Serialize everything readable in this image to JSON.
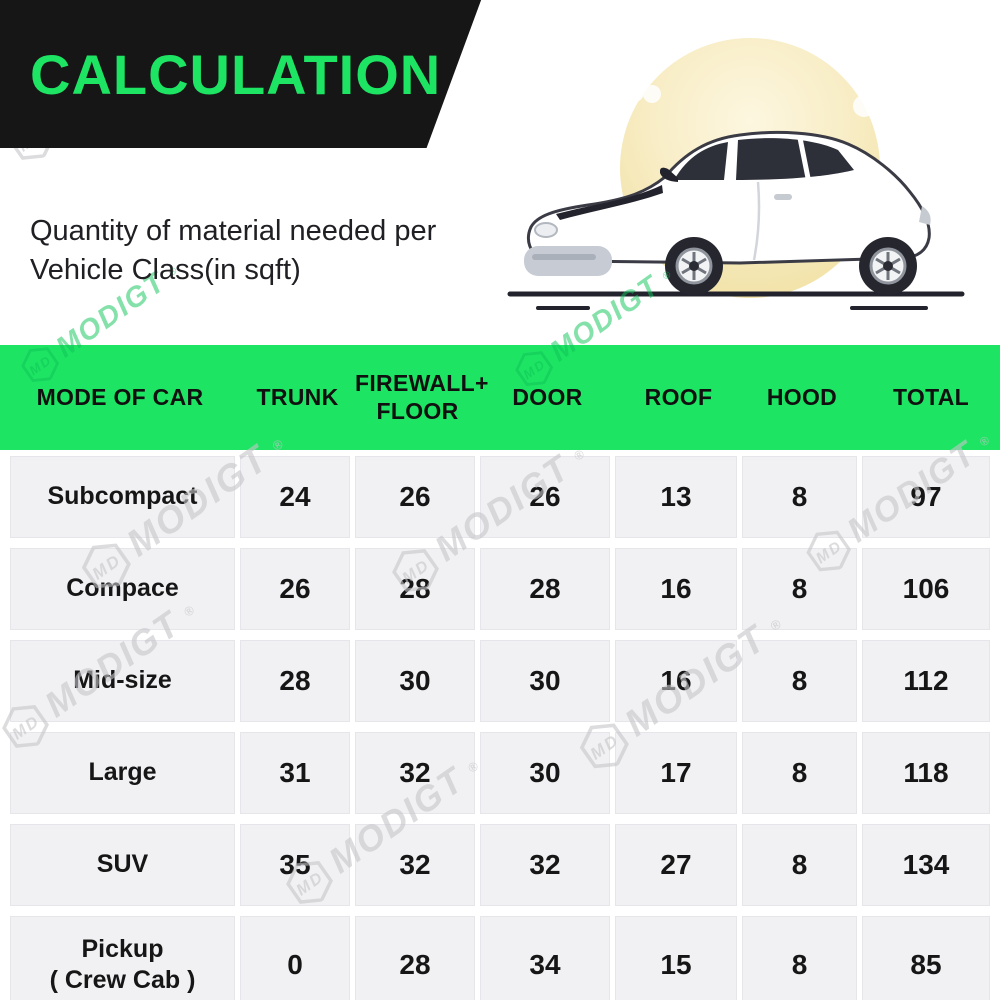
{
  "banner": {
    "title": "CALCULATION"
  },
  "intro": {
    "line1": "Quantity of material needed per",
    "line2": "Vehicle Class(in sqft)"
  },
  "watermark": {
    "brand": "MODIGT",
    "monogram": "MD",
    "reg": "®"
  },
  "colors": {
    "accent_green": "#1de463",
    "banner_black": "#161616",
    "row_gray": "#f1f1f4",
    "text_dark": "#161616"
  },
  "illustration": {
    "name": "white-compact-car"
  },
  "chart_data": {
    "type": "table",
    "title": "Quantity of material needed per Vehicle Class (in sqft)",
    "columns": [
      "MODE OF CAR",
      "TRUNK",
      "FIREWALL+\nFLOOR",
      "DOOR",
      "ROOF",
      "HOOD",
      "TOTAL"
    ],
    "rows": [
      {
        "mode": "Subcompact",
        "values": [
          "24",
          "26",
          "26",
          "13",
          "8",
          "97"
        ]
      },
      {
        "mode": "Compace",
        "values": [
          "26",
          "28",
          "28",
          "16",
          "8",
          "106"
        ]
      },
      {
        "mode": "Mid-size",
        "values": [
          "28",
          "30",
          "30",
          "16",
          "8",
          "112"
        ]
      },
      {
        "mode": "Large",
        "values": [
          "31",
          "32",
          "30",
          "17",
          "8",
          "118"
        ]
      },
      {
        "mode": "SUV",
        "values": [
          "35",
          "32",
          "32",
          "27",
          "8",
          "134"
        ]
      },
      {
        "mode": "Pickup\n( Crew Cab )",
        "values": [
          "0",
          "28",
          "34",
          "15",
          "8",
          "85"
        ]
      }
    ]
  }
}
